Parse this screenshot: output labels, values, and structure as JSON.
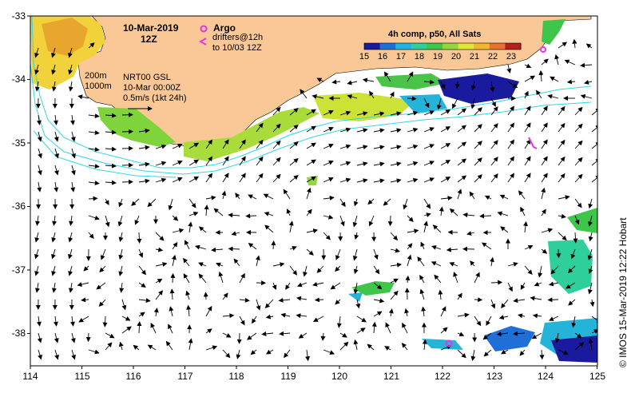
{
  "map": {
    "date": "10-Mar-2019",
    "time": "12Z",
    "legend": {
      "argo_label": "Argo",
      "drifters_line1": "drifters@12h",
      "drifters_line2": "to 10/03 12Z",
      "isobath_200": "200m",
      "isobath_1000": "1000m",
      "product_line1": "NRT00 GSL",
      "product_line2": "10-Mar 00:00Z",
      "scale_arrow": "0.5m/s (1kt 24h)"
    },
    "colorbar": {
      "title": "4h comp, p50, All Sats",
      "ticks": [
        "15",
        "16",
        "17",
        "18",
        "19",
        "20",
        "21",
        "22",
        "23"
      ],
      "colors": [
        "#1a1a9e",
        "#1f6fd9",
        "#25b4d9",
        "#2fcf9c",
        "#3fc64a",
        "#8fd93a",
        "#dfe636",
        "#f4b531",
        "#e9712c",
        "#b71e1e"
      ]
    },
    "x_ticks": [
      "114",
      "115",
      "116",
      "117",
      "118",
      "119",
      "120",
      "121",
      "122",
      "123",
      "124",
      "125"
    ],
    "y_ticks": [
      "-33",
      "-34",
      "-35",
      "-36",
      "-37",
      "-38"
    ],
    "credit": "© IMOS 15-Mar-2019 12:22 Hobart",
    "colors": {
      "land": "#fac896",
      "isobath": "#33d6e6",
      "argo": "#e534e5"
    }
  }
}
